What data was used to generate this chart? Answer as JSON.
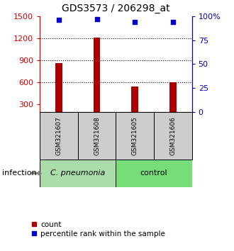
{
  "title": "GDS3573 / 206298_at",
  "samples": [
    "GSM321607",
    "GSM321608",
    "GSM321605",
    "GSM321606"
  ],
  "counts": [
    860,
    1210,
    540,
    605
  ],
  "percentiles": [
    96,
    97,
    94,
    94
  ],
  "group_labels": [
    "C. pneumonia",
    "control"
  ],
  "cpneumonia_color": "#aaddaa",
  "control_color": "#77dd77",
  "bar_color": "#aa0000",
  "dot_color": "#0000cc",
  "ylim_left": [
    200,
    1500
  ],
  "ylim_right": [
    0,
    100
  ],
  "yticks_left": [
    300,
    600,
    900,
    1200,
    1500
  ],
  "yticks_right": [
    0,
    25,
    50,
    75,
    100
  ],
  "left_axis_color": "#cc0000",
  "right_axis_color": "#0000bb",
  "sample_box_color": "#cccccc",
  "infection_label": "infection",
  "legend_count": "count",
  "legend_percentile": "percentile rank within the sample",
  "bg_color": "#ffffff",
  "grid_ticks": [
    600,
    900,
    1200
  ]
}
